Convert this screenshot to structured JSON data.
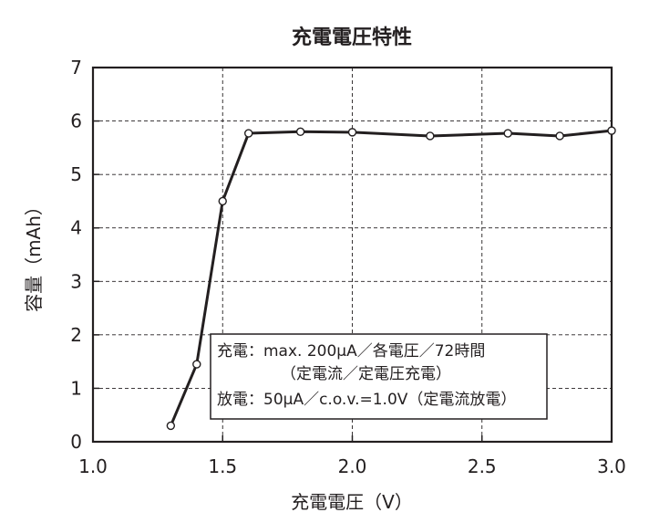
{
  "chart_data": {
    "type": "line",
    "title": "充電電圧特性",
    "xlabel": "充電電圧（V）",
    "ylabel": "容量（mAh）",
    "xlim": [
      1.0,
      3.0
    ],
    "ylim": [
      0,
      7
    ],
    "xticks": [
      1.0,
      1.5,
      2.0,
      2.5,
      3.0
    ],
    "xtick_labels": [
      "1.0",
      "1.5",
      "2.0",
      "2.5",
      "3.0"
    ],
    "yticks": [
      0,
      1,
      2,
      3,
      4,
      5,
      6,
      7
    ],
    "ytick_labels": [
      "0",
      "1",
      "2",
      "3",
      "4",
      "5",
      "6",
      "7"
    ],
    "grid": "dashed",
    "x": [
      1.3,
      1.4,
      1.5,
      1.6,
      1.8,
      2.0,
      2.3,
      2.6,
      2.8,
      3.0
    ],
    "y": [
      0.3,
      1.45,
      4.5,
      5.77,
      5.8,
      5.79,
      5.72,
      5.77,
      5.72,
      5.82
    ],
    "annotation": [
      "充電：max. 200μA／各電圧／72時間",
      "（定電流／定電圧充電）",
      "放電：50μA／c.o.v.=1.0V（定電流放電）"
    ]
  }
}
